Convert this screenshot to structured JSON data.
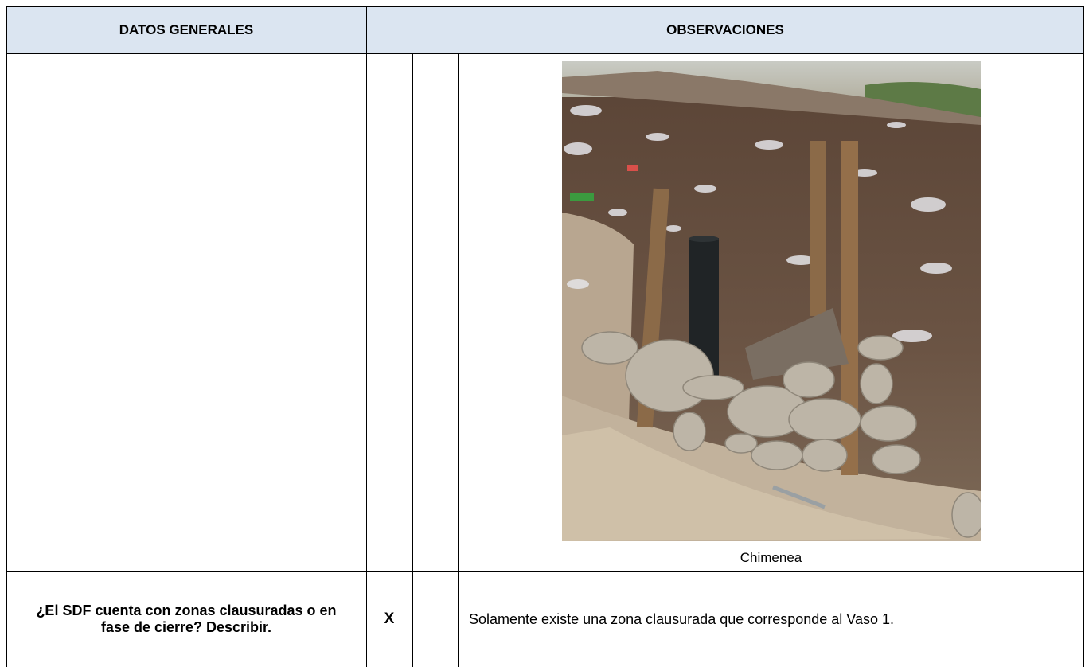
{
  "table": {
    "header": [
      "DATOS GENERALES",
      "OBSERVACIONES"
    ],
    "photo_caption": "Chimenea",
    "rows": [
      [
        "¿El SDF cuenta con zonas clausuradas o en fase de cierre? Describir.",
        "X",
        "Solamente existe una zona clausurada que corresponde al Vaso 1."
      ]
    ]
  }
}
